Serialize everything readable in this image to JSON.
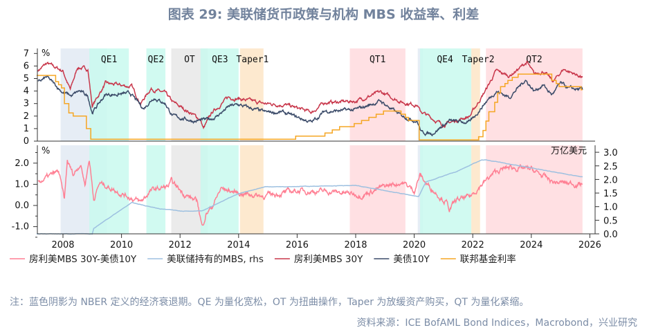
{
  "title": "图表 29: 美联储货币政策与机构 MBS 收益率、利差",
  "note": "注：蓝色阴影为 NBER 定义的经济衰退期。QE 为量化宽松，OT 为扭曲操作，Taper 为放缓资产购买，QT 为量化紧缩。",
  "source": "资料来源：ICE BofAML Bond Indices，Macrobond，兴业研究",
  "chart_data": [
    {
      "type": "line",
      "panel": "top",
      "unit_label": "%",
      "xlim": [
        2007.1,
        2026.2
      ],
      "ylim": [
        0,
        7
      ],
      "yticks": [
        "0",
        "1",
        "2",
        "3",
        "4",
        "5",
        "6",
        "7"
      ],
      "grid": false,
      "series": [
        {
          "name": "房利美MBS 30Y",
          "color": "#c8364a",
          "points": [
            [
              2007.15,
              5.65
            ],
            [
              2007.45,
              6.2
            ],
            [
              2008.0,
              5.6
            ],
            [
              2008.25,
              4.1
            ],
            [
              2008.5,
              5.9
            ],
            [
              2008.85,
              5.75
            ],
            [
              2009.0,
              2.8
            ],
            [
              2009.45,
              4.6
            ],
            [
              2010.35,
              4.35
            ],
            [
              2010.65,
              3.0
            ],
            [
              2011.0,
              4.2
            ],
            [
              2011.5,
              3.8
            ],
            [
              2011.75,
              3.1
            ],
            [
              2012.4,
              2.2
            ],
            [
              2012.7,
              1.7
            ],
            [
              2012.8,
              1.0
            ],
            [
              2013.1,
              2.3
            ],
            [
              2013.65,
              3.5
            ],
            [
              2014.0,
              3.4
            ],
            [
              2014.85,
              3.0
            ],
            [
              2015.6,
              2.9
            ],
            [
              2016.5,
              2.3
            ],
            [
              2016.95,
              3.1
            ],
            [
              2017.2,
              3.1
            ],
            [
              2018.0,
              3.2
            ],
            [
              2018.85,
              3.9
            ],
            [
              2019.6,
              3.1
            ],
            [
              2020.1,
              2.9
            ],
            [
              2020.2,
              2.4
            ],
            [
              2020.98,
              1.3
            ],
            [
              2021.9,
              2.0
            ],
            [
              2022.4,
              3.9
            ],
            [
              2022.8,
              5.6
            ],
            [
              2023.25,
              5.2
            ],
            [
              2023.85,
              6.3
            ],
            [
              2024.1,
              5.3
            ],
            [
              2024.4,
              5.6
            ],
            [
              2024.75,
              4.75
            ],
            [
              2025.1,
              5.75
            ],
            [
              2025.75,
              5.1
            ]
          ]
        },
        {
          "name": "美债10Y",
          "color": "#3a4a68",
          "points": [
            [
              2007.15,
              4.7
            ],
            [
              2007.45,
              5.1
            ],
            [
              2008.0,
              3.9
            ],
            [
              2008.3,
              3.6
            ],
            [
              2008.55,
              4.0
            ],
            [
              2008.85,
              3.6
            ],
            [
              2009.0,
              2.3
            ],
            [
              2009.45,
              3.7
            ],
            [
              2010.3,
              3.8
            ],
            [
              2010.75,
              2.6
            ],
            [
              2011.1,
              3.5
            ],
            [
              2011.5,
              3.0
            ],
            [
              2011.75,
              2.0
            ],
            [
              2012.5,
              1.6
            ],
            [
              2012.9,
              1.7
            ],
            [
              2013.2,
              1.9
            ],
            [
              2013.7,
              2.8
            ],
            [
              2014.0,
              2.9
            ],
            [
              2014.9,
              2.3
            ],
            [
              2015.5,
              2.3
            ],
            [
              2016.5,
              1.5
            ],
            [
              2016.95,
              2.4
            ],
            [
              2017.2,
              2.4
            ],
            [
              2018.0,
              2.5
            ],
            [
              2018.85,
              3.2
            ],
            [
              2019.5,
              2.1
            ],
            [
              2020.1,
              1.6
            ],
            [
              2020.25,
              0.7
            ],
            [
              2020.6,
              0.6
            ],
            [
              2021.2,
              1.6
            ],
            [
              2021.9,
              1.5
            ],
            [
              2022.4,
              3.0
            ],
            [
              2022.8,
              4.0
            ],
            [
              2023.25,
              3.5
            ],
            [
              2023.8,
              4.9
            ],
            [
              2024.1,
              4.0
            ],
            [
              2024.4,
              4.5
            ],
            [
              2024.7,
              3.7
            ],
            [
              2025.0,
              4.6
            ],
            [
              2025.3,
              4.2
            ],
            [
              2025.75,
              4.1
            ]
          ]
        },
        {
          "name": "联邦基金利率",
          "color": "#f5a623",
          "step": true,
          "points": [
            [
              2007.1,
              5.25
            ],
            [
              2007.75,
              4.75
            ],
            [
              2007.85,
              4.5
            ],
            [
              2007.95,
              4.25
            ],
            [
              2008.05,
              3.0
            ],
            [
              2008.2,
              2.25
            ],
            [
              2008.35,
              2.0
            ],
            [
              2008.8,
              1.0
            ],
            [
              2008.95,
              0.15
            ],
            [
              2015.95,
              0.4
            ],
            [
              2016.95,
              0.65
            ],
            [
              2017.2,
              0.9
            ],
            [
              2017.45,
              1.15
            ],
            [
              2017.95,
              1.4
            ],
            [
              2018.2,
              1.65
            ],
            [
              2018.45,
              1.9
            ],
            [
              2018.7,
              2.15
            ],
            [
              2018.95,
              2.4
            ],
            [
              2019.55,
              2.15
            ],
            [
              2019.7,
              1.9
            ],
            [
              2019.8,
              1.65
            ],
            [
              2020.17,
              0.1
            ],
            [
              2022.2,
              0.35
            ],
            [
              2022.35,
              0.85
            ],
            [
              2022.45,
              1.6
            ],
            [
              2022.55,
              2.35
            ],
            [
              2022.75,
              3.1
            ],
            [
              2022.85,
              3.85
            ],
            [
              2022.95,
              4.35
            ],
            [
              2023.1,
              4.6
            ],
            [
              2023.2,
              4.85
            ],
            [
              2023.35,
              5.1
            ],
            [
              2023.55,
              5.35
            ],
            [
              2024.7,
              4.85
            ],
            [
              2024.85,
              4.6
            ],
            [
              2024.95,
              4.35
            ],
            [
              2025.7,
              4.1
            ]
          ]
        }
      ]
    },
    {
      "type": "line",
      "panel": "bottom",
      "unit_label": "%",
      "rhs_unit_label": "万亿美元",
      "xlim": [
        2007.1,
        2026.2
      ],
      "xticks": [
        "2008",
        "2010",
        "2012",
        "2014",
        "2016",
        "2018",
        "2020",
        "2022",
        "2024",
        "2026"
      ],
      "ylim": [
        -1.3,
        2.9
      ],
      "yticks": [
        "-1.0",
        "0.0",
        "1.0",
        "2.0"
      ],
      "y2lim": [
        0,
        3.2
      ],
      "y2ticks": [
        "0.0",
        "0.5",
        "1.0",
        "1.5",
        "2.0",
        "2.5",
        "3.0"
      ],
      "grid": false,
      "series": [
        {
          "name": "房利美MBS 30Y-美债10Y",
          "color": "#ff7f93",
          "axis": "left",
          "points": [
            [
              2007.15,
              1.1
            ],
            [
              2007.85,
              1.6
            ],
            [
              2008.05,
              0.25
            ],
            [
              2008.15,
              2.1
            ],
            [
              2008.35,
              1.45
            ],
            [
              2008.6,
              2.0
            ],
            [
              2008.75,
              1.0
            ],
            [
              2008.9,
              2.2
            ],
            [
              2009.05,
              0.3
            ],
            [
              2009.25,
              1.05
            ],
            [
              2009.45,
              0.95
            ],
            [
              2010.2,
              0.45
            ],
            [
              2010.65,
              0.15
            ],
            [
              2011.0,
              0.7
            ],
            [
              2011.6,
              0.9
            ],
            [
              2011.7,
              1.1
            ],
            [
              2012.15,
              0.55
            ],
            [
              2012.6,
              0.15
            ],
            [
              2012.75,
              -1.0
            ],
            [
              2012.9,
              -0.35
            ],
            [
              2013.1,
              -0.05
            ],
            [
              2013.4,
              0.8
            ],
            [
              2013.95,
              0.6
            ],
            [
              2014.85,
              0.45
            ],
            [
              2016.0,
              0.7
            ],
            [
              2017.2,
              0.65
            ],
            [
              2018.2,
              0.5
            ],
            [
              2019.0,
              0.9
            ],
            [
              2019.6,
              1.1
            ],
            [
              2020.0,
              0.7
            ],
            [
              2020.2,
              1.45
            ],
            [
              2020.4,
              1.05
            ],
            [
              2021.1,
              0.15
            ],
            [
              2021.2,
              -0.2
            ],
            [
              2021.45,
              0.25
            ],
            [
              2021.9,
              0.4
            ],
            [
              2022.3,
              1.0
            ],
            [
              2022.8,
              1.6
            ],
            [
              2023.25,
              1.8
            ],
            [
              2024.0,
              1.7
            ],
            [
              2024.75,
              1.1
            ],
            [
              2025.75,
              1.0
            ]
          ]
        },
        {
          "name": "美联储持有的MBS, rhs",
          "color": "#9dc0e0",
          "axis": "right",
          "points": [
            [
              2007.1,
              0
            ],
            [
              2009.0,
              0
            ],
            [
              2009.05,
              0.2
            ],
            [
              2009.4,
              0.46
            ],
            [
              2010.35,
              1.15
            ],
            [
              2011.3,
              0.92
            ],
            [
              2012.1,
              0.84
            ],
            [
              2012.75,
              0.84
            ],
            [
              2014.0,
              1.48
            ],
            [
              2014.9,
              1.73
            ],
            [
              2017.2,
              1.76
            ],
            [
              2018.0,
              1.78
            ],
            [
              2020.15,
              1.37
            ],
            [
              2020.4,
              1.91
            ],
            [
              2021.45,
              2.29
            ],
            [
              2022.3,
              2.72
            ],
            [
              2022.45,
              2.72
            ],
            [
              2025.75,
              2.09
            ]
          ]
        }
      ]
    }
  ],
  "periods": [
    {
      "label": "",
      "kind": "recession",
      "from": 2007.92,
      "to": 2009.5,
      "color": "#e6edf5"
    },
    {
      "label": "QE1",
      "kind": "qe",
      "from": 2008.9,
      "to": 2010.25,
      "color": "#c9f9ee"
    },
    {
      "label": "QE2",
      "kind": "qe",
      "from": 2010.85,
      "to": 2011.5,
      "color": "#c9f9ee"
    },
    {
      "label": "OT",
      "kind": "ot",
      "from": 2011.7,
      "to": 2012.95,
      "color": "#e8e8e8"
    },
    {
      "label": "QE3",
      "kind": "qe",
      "from": 2012.7,
      "to": 2014.0,
      "color": "#c9f9ee"
    },
    {
      "label": "Taper1",
      "kind": "taper",
      "from": 2014.05,
      "to": 2014.85,
      "color": "#fde9cf"
    },
    {
      "label": "QT1",
      "kind": "qt",
      "from": 2017.8,
      "to": 2019.7,
      "color": "#ffe0e3"
    },
    {
      "label": "",
      "kind": "recession",
      "from": 2020.12,
      "to": 2020.3,
      "color": "#e6edf5"
    },
    {
      "label": "QE4",
      "kind": "qe",
      "from": 2020.2,
      "to": 2021.95,
      "color": "#c9f9ee"
    },
    {
      "label": "Taper2",
      "kind": "taper",
      "from": 2021.95,
      "to": 2022.25,
      "color": "#fde9cf"
    },
    {
      "label": "QT2",
      "kind": "qt",
      "from": 2022.45,
      "to": 2025.75,
      "color": "#ffe0e3"
    }
  ],
  "legend": [
    {
      "label": "房利美MBS 30Y-美债10Y",
      "color": "#ff7f93"
    },
    {
      "label": "美联储持有的MBS, rhs",
      "color": "#9dc0e0"
    },
    {
      "label": "房利美MBS 30Y",
      "color": "#c8364a"
    },
    {
      "label": "美债10Y",
      "color": "#3a4a68"
    },
    {
      "label": "联邦基金利率",
      "color": "#f5a623"
    }
  ]
}
